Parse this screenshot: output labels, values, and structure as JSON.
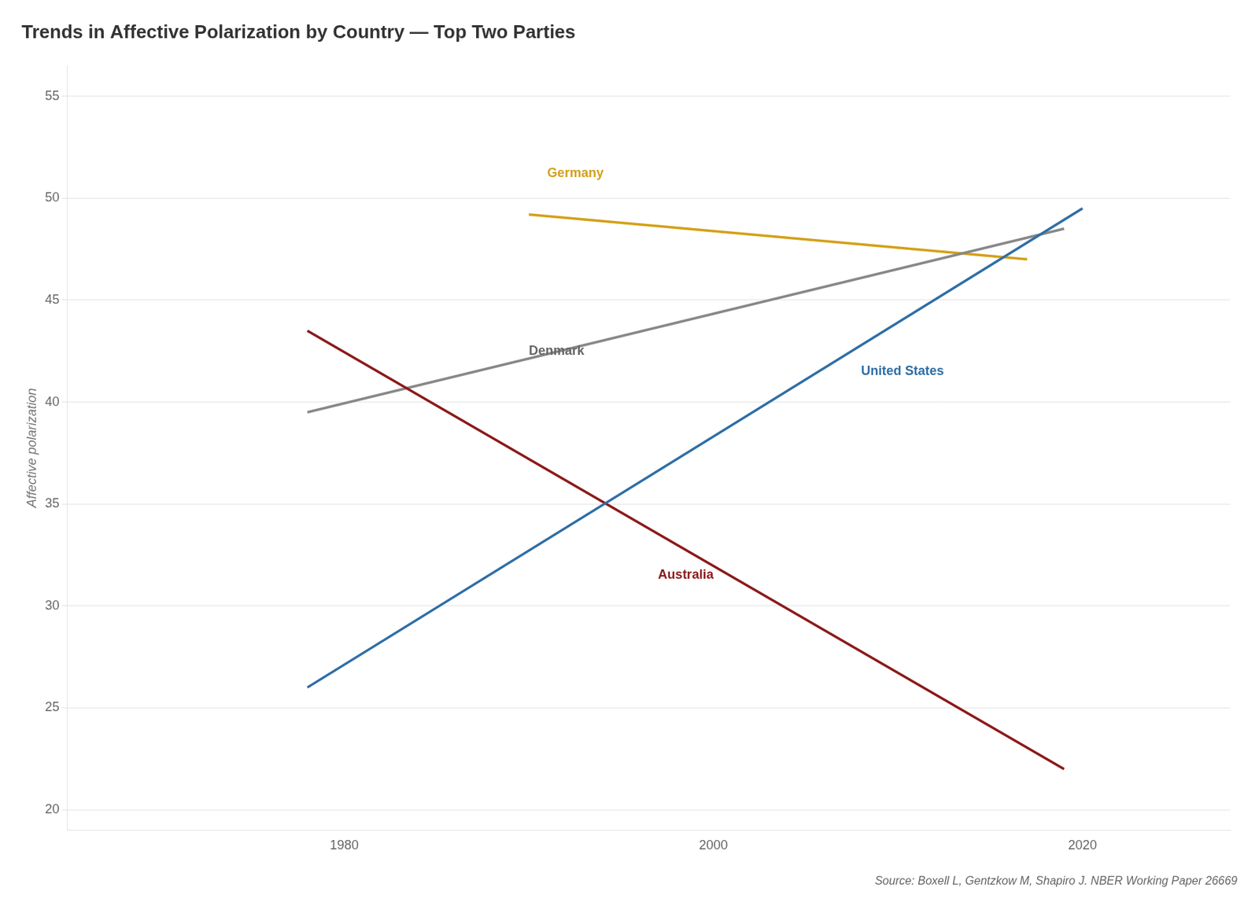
{
  "chart_data": {
    "type": "line",
    "title": "Trends in Affective Polarization by Country — Top Two Parties",
    "y_label": "Affective polarization",
    "series": [
      {
        "name": "United States",
        "color": "#2E6EA6",
        "x": [
          1978,
          2020
        ],
        "values": [
          26,
          49.5
        ]
      },
      {
        "name": "Australia",
        "color": "#8B1A1A",
        "x": [
          1978,
          2019
        ],
        "values": [
          43.5,
          22
        ]
      },
      {
        "name": "Denmark",
        "color": "#888888",
        "x": [
          1978,
          2019
        ],
        "values": [
          39.5,
          48.5
        ]
      },
      {
        "name": "Germany",
        "color": "#D4A017",
        "x": [
          1990,
          2017
        ],
        "values": [
          49.2,
          47.0
        ]
      }
    ],
    "annotations": [
      {
        "text": "United States",
        "x": 2008,
        "y": 41.5,
        "color": "#2E6EA6"
      },
      {
        "text": "Australia",
        "x": 1997,
        "y": 31.5,
        "color": "#8B1A1A"
      },
      {
        "text": "Denmark",
        "x": 1990,
        "y": 42.5,
        "color": "#666666"
      },
      {
        "text": "Germany",
        "x": 1991,
        "y": 51.2,
        "color": "#D4A017"
      },
      {
        "text": "Source: Boxell L, Gentzkow M, Shapiro J. NBER Working Paper 26669"
      }
    ],
    "xlim": [
      1965,
      2028
    ],
    "ylim": [
      19,
      56.5
    ],
    "xticks": [
      1980,
      2000,
      2020
    ],
    "yticks": [
      20,
      25,
      30,
      35,
      40,
      45,
      50,
      55
    ],
    "grid": "y"
  }
}
